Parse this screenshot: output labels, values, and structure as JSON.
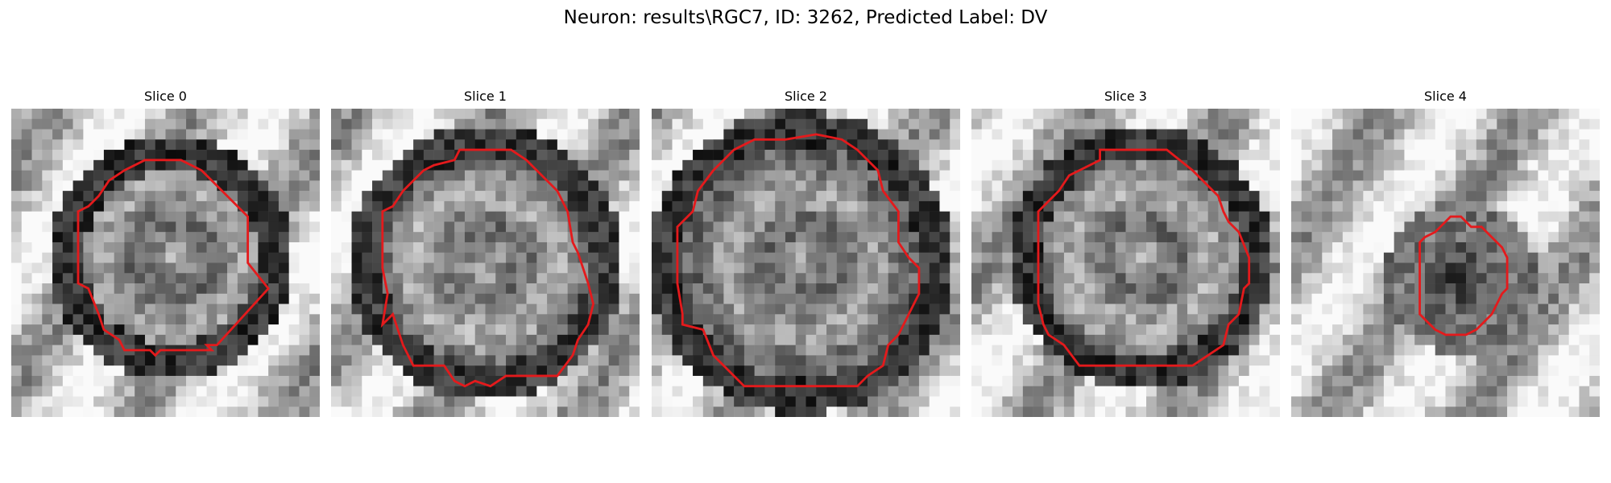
{
  "figure": {
    "title": "Neuron: results\\RGC7, ID: 3262, Predicted Label: DV"
  },
  "colors": {
    "background": "#ffffff",
    "contour": "#e41a1c",
    "text": "#000000"
  },
  "panels": [
    {
      "title": "Slice 0"
    },
    {
      "title": "Slice 1"
    },
    {
      "title": "Slice 2"
    },
    {
      "title": "Slice 3"
    },
    {
      "title": "Slice 4"
    }
  ]
}
